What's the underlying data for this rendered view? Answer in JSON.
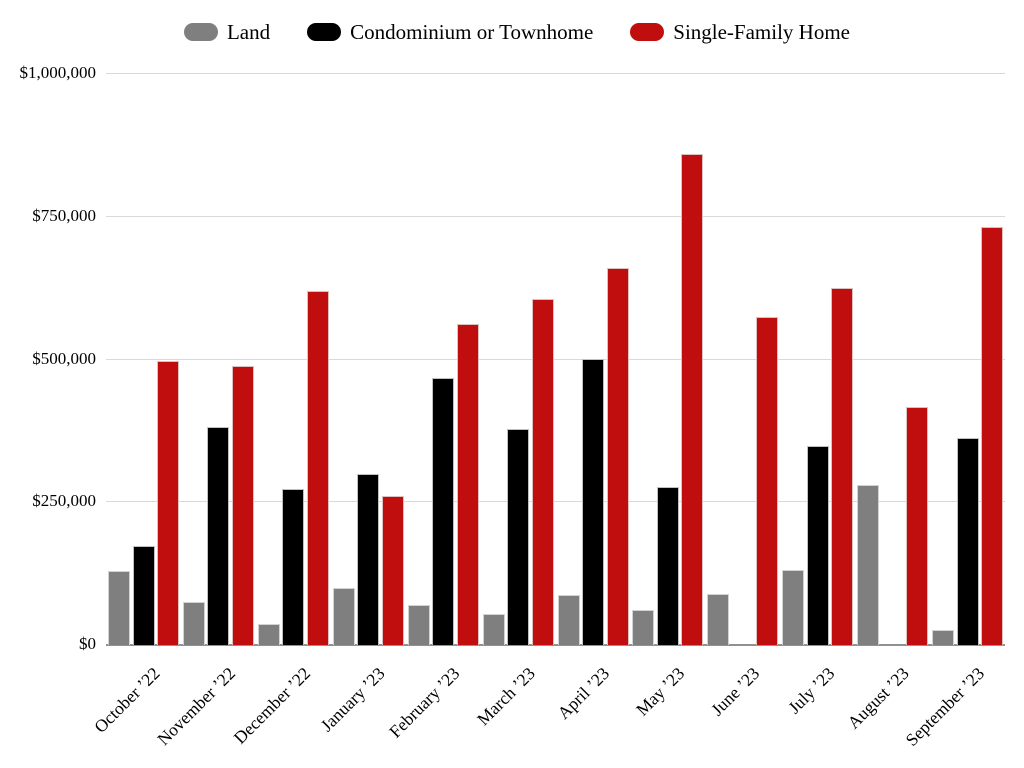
{
  "legend": {
    "items": [
      {
        "label": "Land",
        "color": "#7f7f7f"
      },
      {
        "label": "Condominium or Townhome",
        "color": "#000000"
      },
      {
        "label": "Single-Family Home",
        "color": "#c00d0d"
      }
    ]
  },
  "chart_data": {
    "type": "bar",
    "title": "",
    "xlabel": "",
    "ylabel": "",
    "categories": [
      "October ’22",
      "November ’22",
      "December ’22",
      "January ’23",
      "February ’23",
      "March ’23",
      "April ’23",
      "May ’23",
      "June ’23",
      "July ’23",
      "August ’23",
      "September ’23"
    ],
    "series": [
      {
        "name": "Land",
        "color": "#7f7f7f",
        "values": [
          130000,
          75000,
          36000,
          100000,
          70000,
          55000,
          88000,
          62000,
          90000,
          132000,
          281000,
          27000
        ]
      },
      {
        "name": "Condominium or Townhome",
        "color": "#000000",
        "values": [
          173000,
          381000,
          274000,
          300000,
          468000,
          378000,
          500000,
          277000,
          0,
          348000,
          0,
          363000
        ]
      },
      {
        "name": "Single-Family Home",
        "color": "#c00d0d",
        "values": [
          497000,
          489000,
          620000,
          261000,
          563000,
          606000,
          660000,
          860000,
          575000,
          626000,
          417000,
          732000
        ]
      }
    ],
    "ylim": [
      0,
      1000000
    ],
    "yticks": [
      {
        "value": 0,
        "label": "$0"
      },
      {
        "value": 250000,
        "label": "$250,000"
      },
      {
        "value": 500000,
        "label": "$500,000"
      },
      {
        "value": 750000,
        "label": "$750,000"
      },
      {
        "value": 1000000,
        "label": "$1,000,000"
      }
    ],
    "grid": true,
    "legend_position": "top"
  },
  "colors": {
    "background": "#ffffff",
    "grid": "#d9d9d9",
    "axis": "#919191",
    "text": "#000000"
  }
}
